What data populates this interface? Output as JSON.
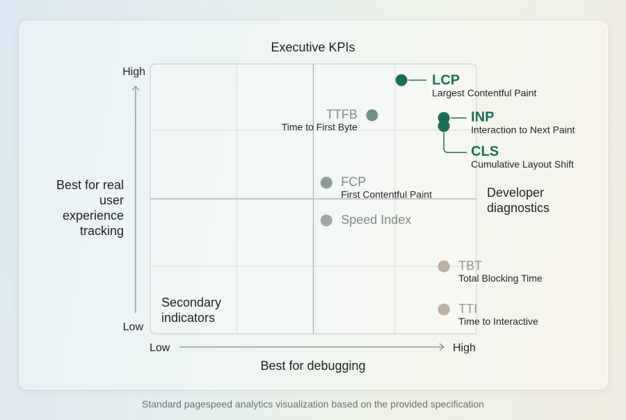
{
  "chart_data": {
    "type": "scatter",
    "title": "Executive KPIs",
    "xlabel": "Best for debugging",
    "ylabel": "Best for real user experience tracking",
    "x_ticks": [
      "Low",
      "High"
    ],
    "y_ticks": [
      "Low",
      "High"
    ],
    "xlim": [
      0,
      1
    ],
    "ylim": [
      0,
      1
    ],
    "grid": true,
    "quadrant_labels": {
      "top_left": "",
      "top_right": "Executive KPIs",
      "bottom_left": "Secondary indicators",
      "bottom_right": "Developer diagnostics"
    },
    "points": [
      {
        "abbr": "LCP",
        "name": "Largest Contentful Paint",
        "x": 0.77,
        "y": 0.94,
        "color": "#1a6e57"
      },
      {
        "abbr": "TTFB",
        "name": "Time to First Byte",
        "x": 0.68,
        "y": 0.81,
        "color": "#6f918c"
      },
      {
        "abbr": "INP",
        "name": "Interaction to Next Paint",
        "x": 0.9,
        "y": 0.8,
        "color": "#1a6e57"
      },
      {
        "abbr": "CLS",
        "name": "Cumulative Layout Shift",
        "x": 0.9,
        "y": 0.77,
        "color": "#1a6e57"
      },
      {
        "abbr": "FCP",
        "name": "First Contentful Paint",
        "x": 0.54,
        "y": 0.56,
        "color": "#8b9d99"
      },
      {
        "abbr": "Speed Index",
        "name": "",
        "x": 0.54,
        "y": 0.42,
        "color": "#9eaaa8"
      },
      {
        "abbr": "TBT",
        "name": "Total Blocking Time",
        "x": 0.9,
        "y": 0.25,
        "color": "#b8b0a3"
      },
      {
        "abbr": "TTI",
        "name": "Time to Interactive",
        "x": 0.9,
        "y": 0.09,
        "color": "#b8b0a3"
      }
    ]
  },
  "caption": "Standard pagespeed analytics visualization based on the provided specification"
}
